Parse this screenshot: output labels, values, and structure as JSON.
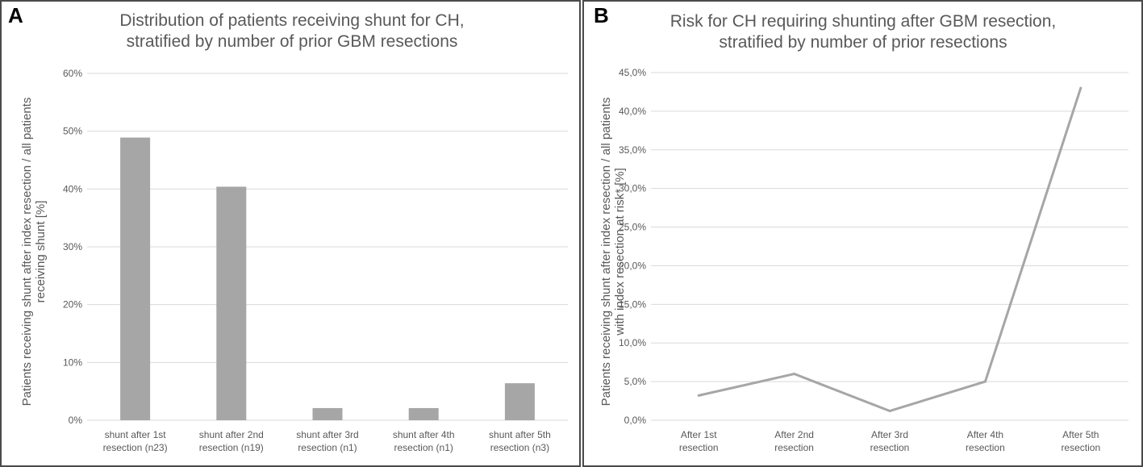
{
  "chart_data": [
    {
      "type": "bar",
      "panel_letter": "A",
      "title": [
        "Distribution of patients receiving shunt for CH,",
        "stratified by number of prior GBM resections"
      ],
      "ylabel": [
        "Patients receiving shunt after index resection / all patients",
        "receiving shunt [%]"
      ],
      "xlabel": "",
      "categories": [
        [
          "shunt after 1st",
          "resection (n23)"
        ],
        [
          "shunt after 2nd",
          "resection (n19)"
        ],
        [
          "shunt after 3rd",
          "resection (n1)"
        ],
        [
          "shunt after 4th",
          "resection (n1)"
        ],
        [
          "shunt after 5th",
          "resection (n3)"
        ]
      ],
      "values": [
        48.9,
        40.4,
        2.1,
        2.1,
        6.4
      ],
      "ylim": [
        0,
        60
      ],
      "yticks": [
        0,
        10,
        20,
        30,
        40,
        50,
        60
      ],
      "ytick_labels": [
        "0%",
        "10%",
        "20%",
        "30%",
        "40%",
        "50%",
        "60%"
      ],
      "bar_color": "#a6a6a6",
      "grid": true
    },
    {
      "type": "line",
      "panel_letter": "B",
      "title": [
        "Risk for CH requiring shunting after GBM resection,",
        "stratified by number of prior resections"
      ],
      "ylabel": [
        "Patients receiving shunt after index resection / all patients",
        "with index resection at risk* [%]"
      ],
      "xlabel": "",
      "categories": [
        [
          "After 1st",
          "resection"
        ],
        [
          "After 2nd",
          "resection"
        ],
        [
          "After 3rd",
          "resection"
        ],
        [
          "After 4th",
          "resection"
        ],
        [
          "After 5th",
          "resection"
        ]
      ],
      "values": [
        3.2,
        6.0,
        1.2,
        5.0,
        43.0
      ],
      "ylim": [
        0,
        45
      ],
      "yticks": [
        0,
        5,
        10,
        15,
        20,
        25,
        30,
        35,
        40,
        45
      ],
      "ytick_labels": [
        "0,0%",
        "5,0%",
        "10,0%",
        "15,0%",
        "20,0%",
        "25,0%",
        "30,0%",
        "35,0%",
        "40,0%",
        "45,0%"
      ],
      "line_color": "#a6a6a6",
      "grid": true
    }
  ]
}
